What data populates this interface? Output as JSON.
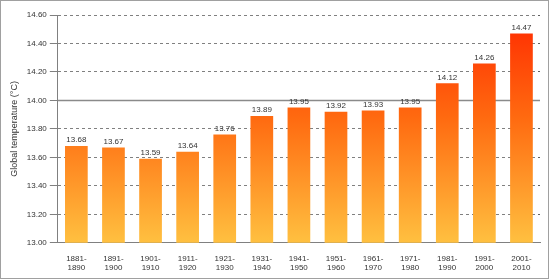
{
  "chart_data": {
    "type": "bar",
    "y_label": "Global temperature (°C)",
    "categories": [
      "1881-1890",
      "1891-1900",
      "1901-1910",
      "1911-1920",
      "1921-1930",
      "1931-1940",
      "1941-1950",
      "1951-1960",
      "1961-1970",
      "1971-1980",
      "1981-1990",
      "1991-2000",
      "2001-2010"
    ],
    "values": [
      13.68,
      13.67,
      13.59,
      13.64,
      13.76,
      13.89,
      13.95,
      13.92,
      13.93,
      13.95,
      14.12,
      14.26,
      14.47
    ],
    "color": "#ff2a00",
    "ylim": [
      13.0,
      14.6
    ],
    "yticks": [
      {
        "value": 13.0,
        "label": "13.00"
      },
      {
        "value": 13.2,
        "label": "13.20"
      },
      {
        "value": 13.4,
        "label": "13.40"
      },
      {
        "value": 13.6,
        "label": "13.60"
      },
      {
        "value": 13.8,
        "label": "13.80"
      },
      {
        "value": 14.0,
        "label": "14.00"
      },
      {
        "value": 14.2,
        "label": "14.20"
      },
      {
        "value": 14.4,
        "label": "14.40"
      },
      {
        "value": 14.6,
        "label": "14.60"
      }
    ],
    "reference_line": 14.0,
    "grid": true,
    "data_labels": true
  }
}
